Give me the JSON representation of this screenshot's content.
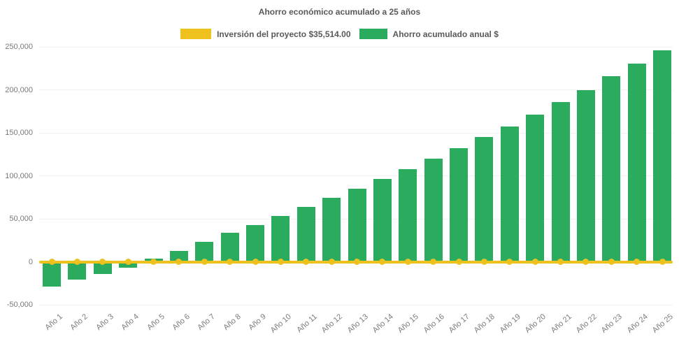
{
  "chart_data": {
    "type": "bar",
    "title": "Ahorro económico acumulado a 25 años",
    "categories": [
      "Año 1",
      "Año 2",
      "Año 3",
      "Año 4",
      "Año 5",
      "Año 6",
      "Año 7",
      "Año 8",
      "Año 9",
      "Año 10",
      "Año 11",
      "Año 12",
      "Año 13",
      "Año 14",
      "Año 15",
      "Año 16",
      "Año 17",
      "Año 18",
      "Año 19",
      "Año 20",
      "Año 21",
      "Año 22",
      "Año 23",
      "Año 24",
      "Año 25"
    ],
    "series": [
      {
        "name": "Inversión del proyecto $35,514.00",
        "type": "line",
        "color": "#eec11d",
        "marker": "circle",
        "values": [
          0,
          0,
          0,
          0,
          0,
          0,
          0,
          0,
          0,
          0,
          0,
          0,
          0,
          0,
          0,
          0,
          0,
          0,
          0,
          0,
          0,
          0,
          0,
          0,
          0
        ]
      },
      {
        "name": "Ahorro acumulado anual $",
        "type": "bar",
        "color": "#2bab5e",
        "values": [
          -28500,
          -21000,
          -14500,
          -7000,
          3500,
          13000,
          23000,
          33500,
          42500,
          53000,
          63500,
          74000,
          85000,
          96500,
          108000,
          120000,
          132500,
          145500,
          157500,
          171500,
          186000,
          200000,
          215500,
          230500,
          246000
        ]
      }
    ],
    "xlabel": "",
    "ylabel": "",
    "ylim": [
      -50000,
      250000
    ],
    "yticks": [
      250000,
      200000,
      150000,
      100000,
      50000,
      0,
      -50000
    ],
    "ytick_labels": [
      "250,000",
      "200,000",
      "150,000",
      "100,000",
      "50,000",
      "0",
      "-50,000"
    ],
    "legend_position": "top",
    "grid": "horizontal-faint",
    "x_label_rotation_deg": -41,
    "background": "#ffffff",
    "text_color": "#7a7a7a",
    "title_color": "#595959"
  }
}
